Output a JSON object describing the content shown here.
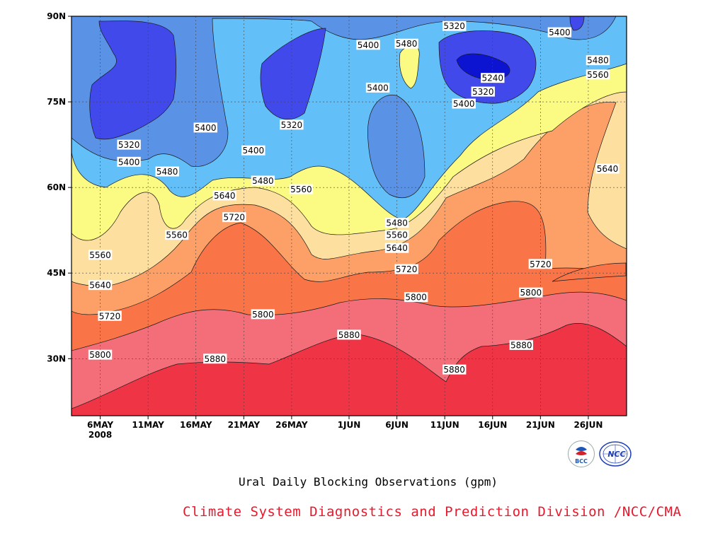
{
  "chart_data": {
    "type": "contour",
    "title": "Ural Daily Blocking Observations (gpm)",
    "xlabel": "",
    "ylabel": "",
    "x_ticks": [
      "6MAY",
      "11MAY",
      "16MAY",
      "21MAY",
      "26MAY",
      "1JUN",
      "6JUN",
      "11JUN",
      "16JUN",
      "21JUN",
      "26JUN"
    ],
    "x_year_label": "2008",
    "y_ticks": [
      "30N",
      "45N",
      "60N",
      "75N",
      "90N"
    ],
    "xlim": [
      "3MAY2008",
      "30JUN2008"
    ],
    "ylim": [
      20,
      90
    ],
    "grid": true,
    "contour_levels": [
      5240,
      5320,
      5400,
      5480,
      5560,
      5640,
      5720,
      5800,
      5880
    ],
    "fill_colors": {
      "below_5240": "#0c14d2",
      "5240_5320": "#4149eb",
      "5320_5400": "#5a92e6",
      "5400_5480": "#63bff7",
      "5480_5560": "#fbfa83",
      "5560_5640": "#fde0a0",
      "5640_5720": "#fca067",
      "5720_5800": "#f97548",
      "5800_5880": "#f36e78",
      "above_5880": "#ef3446"
    },
    "contour_labels": [
      {
        "text": "5320",
        "date": "9MAY",
        "lat": 67.5
      },
      {
        "text": "5400",
        "date": "9MAY",
        "lat": 64.5
      },
      {
        "text": "5480",
        "date": "13MAY",
        "lat": 62.8
      },
      {
        "text": "5400",
        "date": "17MAY",
        "lat": 70.5
      },
      {
        "text": "5320",
        "date": "26MAY",
        "lat": 71
      },
      {
        "text": "5400",
        "date": "22MAY",
        "lat": 66.5
      },
      {
        "text": "5480",
        "date": "23MAY",
        "lat": 61.2
      },
      {
        "text": "5400",
        "date": "3JUN",
        "lat": 85
      },
      {
        "text": "5480",
        "date": "7JUN",
        "lat": 85.2
      },
      {
        "text": "5400",
        "date": "4JUN",
        "lat": 77.5
      },
      {
        "text": "5320",
        "date": "12JUN",
        "lat": 88.3
      },
      {
        "text": "5240",
        "date": "16JUN",
        "lat": 79.2
      },
      {
        "text": "5320",
        "date": "15JUN",
        "lat": 76.8
      },
      {
        "text": "5400",
        "date": "13JUN",
        "lat": 74.7
      },
      {
        "text": "5400",
        "date": "23JUN",
        "lat": 87.2
      },
      {
        "text": "5480",
        "date": "27JUN",
        "lat": 82.3
      },
      {
        "text": "5560",
        "date": "27JUN",
        "lat": 79.8
      },
      {
        "text": "5640",
        "date": "28JUN",
        "lat": 63.3
      },
      {
        "text": "5560",
        "date": "27MAY",
        "lat": 59.7
      },
      {
        "text": "5640",
        "date": "19MAY",
        "lat": 58.6
      },
      {
        "text": "5560",
        "date": "14MAY",
        "lat": 51.7
      },
      {
        "text": "5720",
        "date": "20MAY",
        "lat": 54.8
      },
      {
        "text": "5560",
        "date": "6MAY",
        "lat": 48.2
      },
      {
        "text": "5640",
        "date": "6MAY",
        "lat": 42.9
      },
      {
        "text": "5720",
        "date": "7MAY",
        "lat": 37.5
      },
      {
        "text": "5800",
        "date": "23MAY",
        "lat": 37.8
      },
      {
        "text": "5800",
        "date": "6MAY",
        "lat": 30.7
      },
      {
        "text": "5880",
        "date": "18MAY",
        "lat": 30
      },
      {
        "text": "5880",
        "date": "1JUN",
        "lat": 34.2
      },
      {
        "text": "5480",
        "date": "6JUN",
        "lat": 53.8
      },
      {
        "text": "5560",
        "date": "6JUN",
        "lat": 51.7
      },
      {
        "text": "5640",
        "date": "6JUN",
        "lat": 49.4
      },
      {
        "text": "5720",
        "date": "7JUN",
        "lat": 45.7
      },
      {
        "text": "5800",
        "date": "8JUN",
        "lat": 40.8
      },
      {
        "text": "5880",
        "date": "12JUN",
        "lat": 28.1
      },
      {
        "text": "5880",
        "date": "19JUN",
        "lat": 32.4
      },
      {
        "text": "5800",
        "date": "20JUN",
        "lat": 41.6
      },
      {
        "text": "5720",
        "date": "21JUN",
        "lat": 46.6
      }
    ]
  },
  "footer": {
    "credit": "Climate System Diagnostics and Prediction Division /NCC/CMA",
    "logos": {
      "bcc": {
        "text": "BCC",
        "accent": "#1a57b8",
        "accent2": "#d3222a"
      },
      "ncc": {
        "text": "NCC",
        "accent": "#1f3fb5"
      }
    }
  }
}
